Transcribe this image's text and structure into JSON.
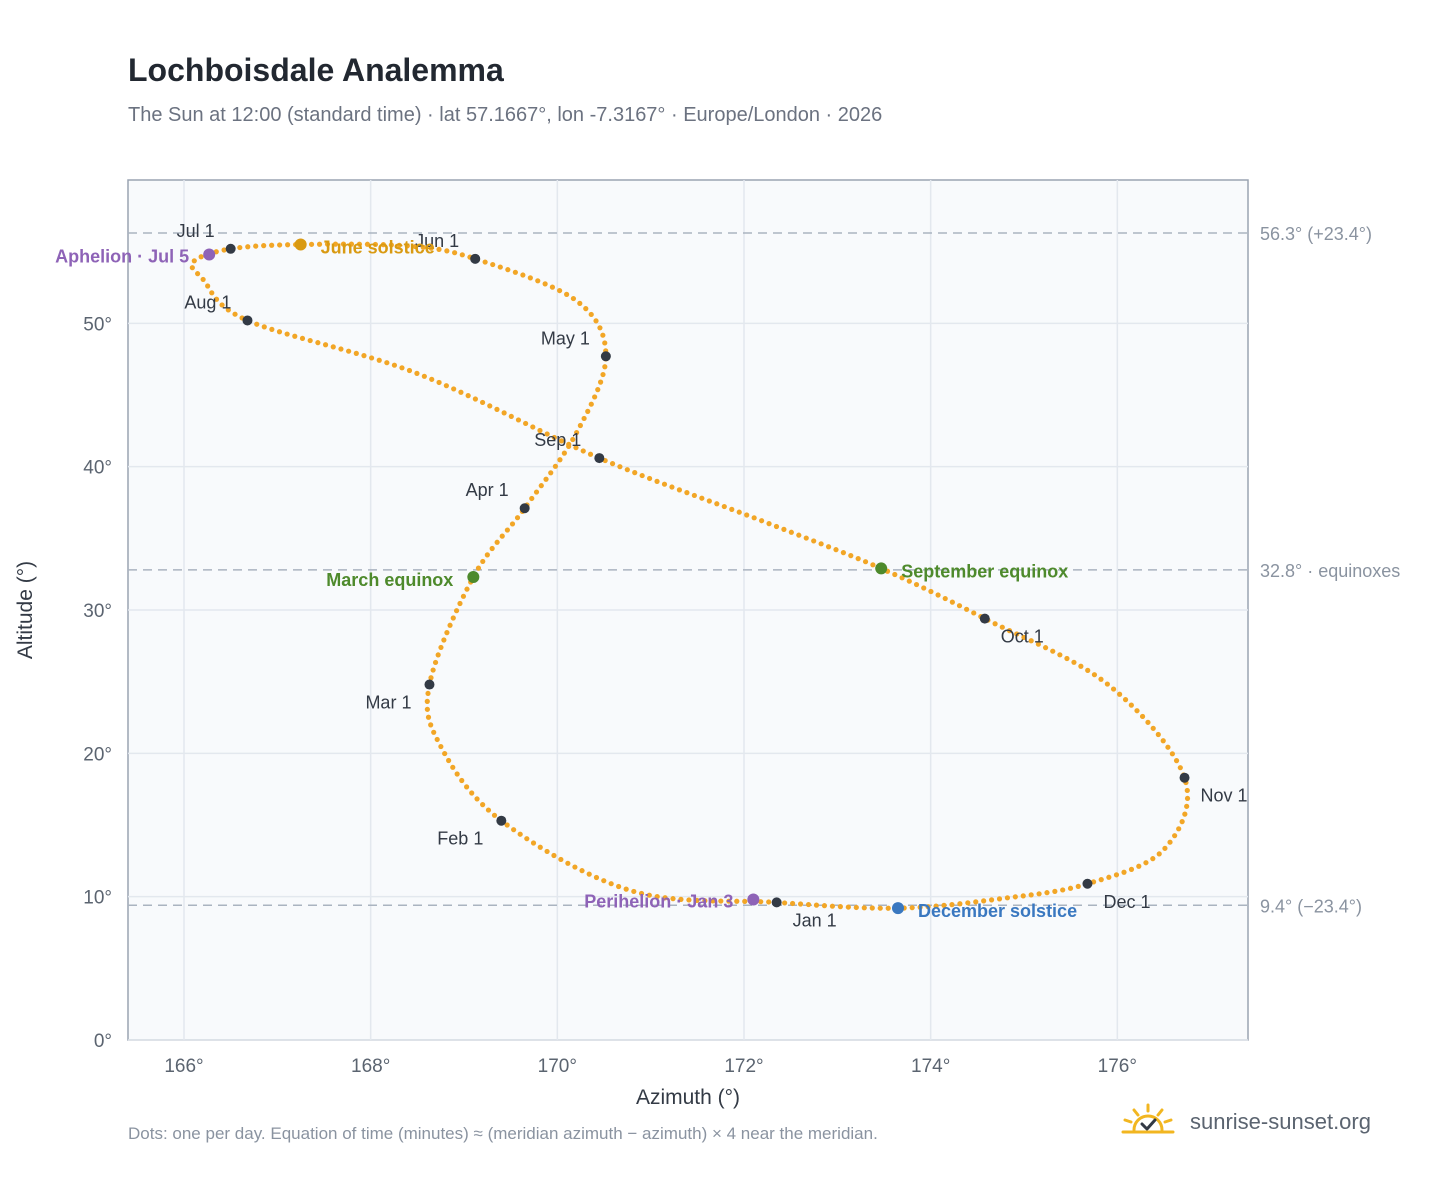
{
  "header": {
    "title": "Lochboisdale Analemma",
    "subtitle": "The Sun at 12:00 (standard time) · lat 57.1667°, lon -7.3167° · Europe/London · 2026"
  },
  "footnote": "Dots: one per day. Equation of time (minutes) ≈ (meridian azimuth − azimuth) × 4 near the meridian.",
  "brand": {
    "name": "sunrise-sunset.org",
    "icon": "sun-check-icon"
  },
  "colors": {
    "curve": "#f2a626",
    "month_marker": "#333a45",
    "june_solstice": "#d99a12",
    "december_solstice": "#3a78c0",
    "equinox": "#4e8a2c",
    "apsis": "#8e63b7"
  },
  "chart_data": {
    "type": "scatter",
    "title": "Lochboisdale Analemma",
    "xlabel": "Azimuth (°)",
    "ylabel": "Altitude (°)",
    "xlim": [
      165.4,
      177.4
    ],
    "ylim": [
      0,
      60
    ],
    "xticks": [
      166,
      168,
      170,
      172,
      174,
      176
    ],
    "xtick_labels": [
      "166°",
      "168°",
      "170°",
      "172°",
      "174°",
      "176°"
    ],
    "yticks": [
      0,
      10,
      20,
      30,
      40,
      50
    ],
    "ytick_labels": [
      "0°",
      "10°",
      "20°",
      "30°",
      "40°",
      "50°"
    ],
    "grid": true,
    "reference_lines": [
      {
        "y": 56.3,
        "label": "56.3° (+23.4°)"
      },
      {
        "y": 32.8,
        "label": "32.8° · equinoxes"
      },
      {
        "y": 9.4,
        "label": "9.4° (−23.4°)"
      }
    ],
    "path_key_points": [
      {
        "x": 172.35,
        "y": 9.6
      },
      {
        "x": 170.8,
        "y": 10.4
      },
      {
        "x": 169.4,
        "y": 15.3
      },
      {
        "x": 168.75,
        "y": 20.5
      },
      {
        "x": 168.63,
        "y": 24.8
      },
      {
        "x": 169.1,
        "y": 32.3
      },
      {
        "x": 169.65,
        "y": 37.1
      },
      {
        "x": 170.2,
        "y": 42.3
      },
      {
        "x": 170.52,
        "y": 47.7
      },
      {
        "x": 170.2,
        "y": 51.6
      },
      {
        "x": 169.12,
        "y": 54.5
      },
      {
        "x": 168.4,
        "y": 55.4
      },
      {
        "x": 167.25,
        "y": 55.5
      },
      {
        "x": 166.5,
        "y": 55.2
      },
      {
        "x": 166.1,
        "y": 54.3
      },
      {
        "x": 166.2,
        "y": 53.1
      },
      {
        "x": 166.68,
        "y": 50.2
      },
      {
        "x": 168.5,
        "y": 46.5
      },
      {
        "x": 170.45,
        "y": 40.6
      },
      {
        "x": 172.2,
        "y": 36.2
      },
      {
        "x": 173.47,
        "y": 32.9
      },
      {
        "x": 174.58,
        "y": 29.4
      },
      {
        "x": 175.9,
        "y": 24.8
      },
      {
        "x": 176.72,
        "y": 18.3
      },
      {
        "x": 176.5,
        "y": 13.3
      },
      {
        "x": 175.68,
        "y": 10.9
      },
      {
        "x": 174.8,
        "y": 9.9
      },
      {
        "x": 173.65,
        "y": 9.2
      },
      {
        "x": 172.35,
        "y": 9.6
      }
    ],
    "month_markers": [
      {
        "label": "Jan 1",
        "x": 172.35,
        "y": 9.6,
        "anchor": "start",
        "dx": 16,
        "dy": 24
      },
      {
        "label": "Feb 1",
        "x": 169.4,
        "y": 15.3,
        "anchor": "end",
        "dx": -18,
        "dy": 24
      },
      {
        "label": "Mar 1",
        "x": 168.63,
        "y": 24.8,
        "anchor": "end",
        "dx": -18,
        "dy": 24
      },
      {
        "label": "Apr 1",
        "x": 169.65,
        "y": 37.1,
        "anchor": "end",
        "dx": -16,
        "dy": -12
      },
      {
        "label": "May 1",
        "x": 170.52,
        "y": 47.7,
        "anchor": "end",
        "dx": -16,
        "dy": -12
      },
      {
        "label": "Jun 1",
        "x": 169.12,
        "y": 54.5,
        "anchor": "end",
        "dx": -16,
        "dy": -12
      },
      {
        "label": "Jul 1",
        "x": 166.5,
        "y": 55.2,
        "anchor": "end",
        "dx": -16,
        "dy": -12
      },
      {
        "label": "Aug 1",
        "x": 166.68,
        "y": 50.2,
        "anchor": "end",
        "dx": -16,
        "dy": -12
      },
      {
        "label": "Sep 1",
        "x": 170.45,
        "y": 40.6,
        "anchor": "end",
        "dx": -18,
        "dy": -12
      },
      {
        "label": "Oct 1",
        "x": 174.58,
        "y": 29.4,
        "anchor": "start",
        "dx": 16,
        "dy": 24
      },
      {
        "label": "Nov 1",
        "x": 176.72,
        "y": 18.3,
        "anchor": "start",
        "dx": 16,
        "dy": 24
      },
      {
        "label": "Dec 1",
        "x": 175.68,
        "y": 10.9,
        "anchor": "start",
        "dx": 16,
        "dy": 24
      }
    ],
    "events": [
      {
        "label": "June solstice",
        "x": 167.25,
        "y": 55.5,
        "color": "#d99a12",
        "anchor": "start",
        "dx": 20,
        "dy": 9
      },
      {
        "label": "December solstice",
        "x": 173.65,
        "y": 9.2,
        "color": "#3a78c0",
        "anchor": "start",
        "dx": 20,
        "dy": 9
      },
      {
        "label": "March equinox",
        "x": 169.1,
        "y": 32.3,
        "color": "#4e8a2c",
        "anchor": "end",
        "dx": -20,
        "dy": 9
      },
      {
        "label": "September equinox",
        "x": 173.47,
        "y": 32.9,
        "color": "#4e8a2c",
        "anchor": "start",
        "dx": 20,
        "dy": 9
      },
      {
        "label": "Aphelion · Jul 5",
        "x": 166.27,
        "y": 54.8,
        "color": "#8e63b7",
        "anchor": "end",
        "dx": -20,
        "dy": 8
      },
      {
        "label": "Perihelion · Jan 3",
        "x": 172.1,
        "y": 9.8,
        "color": "#8e63b7",
        "anchor": "end",
        "dx": -20,
        "dy": 8
      }
    ]
  }
}
